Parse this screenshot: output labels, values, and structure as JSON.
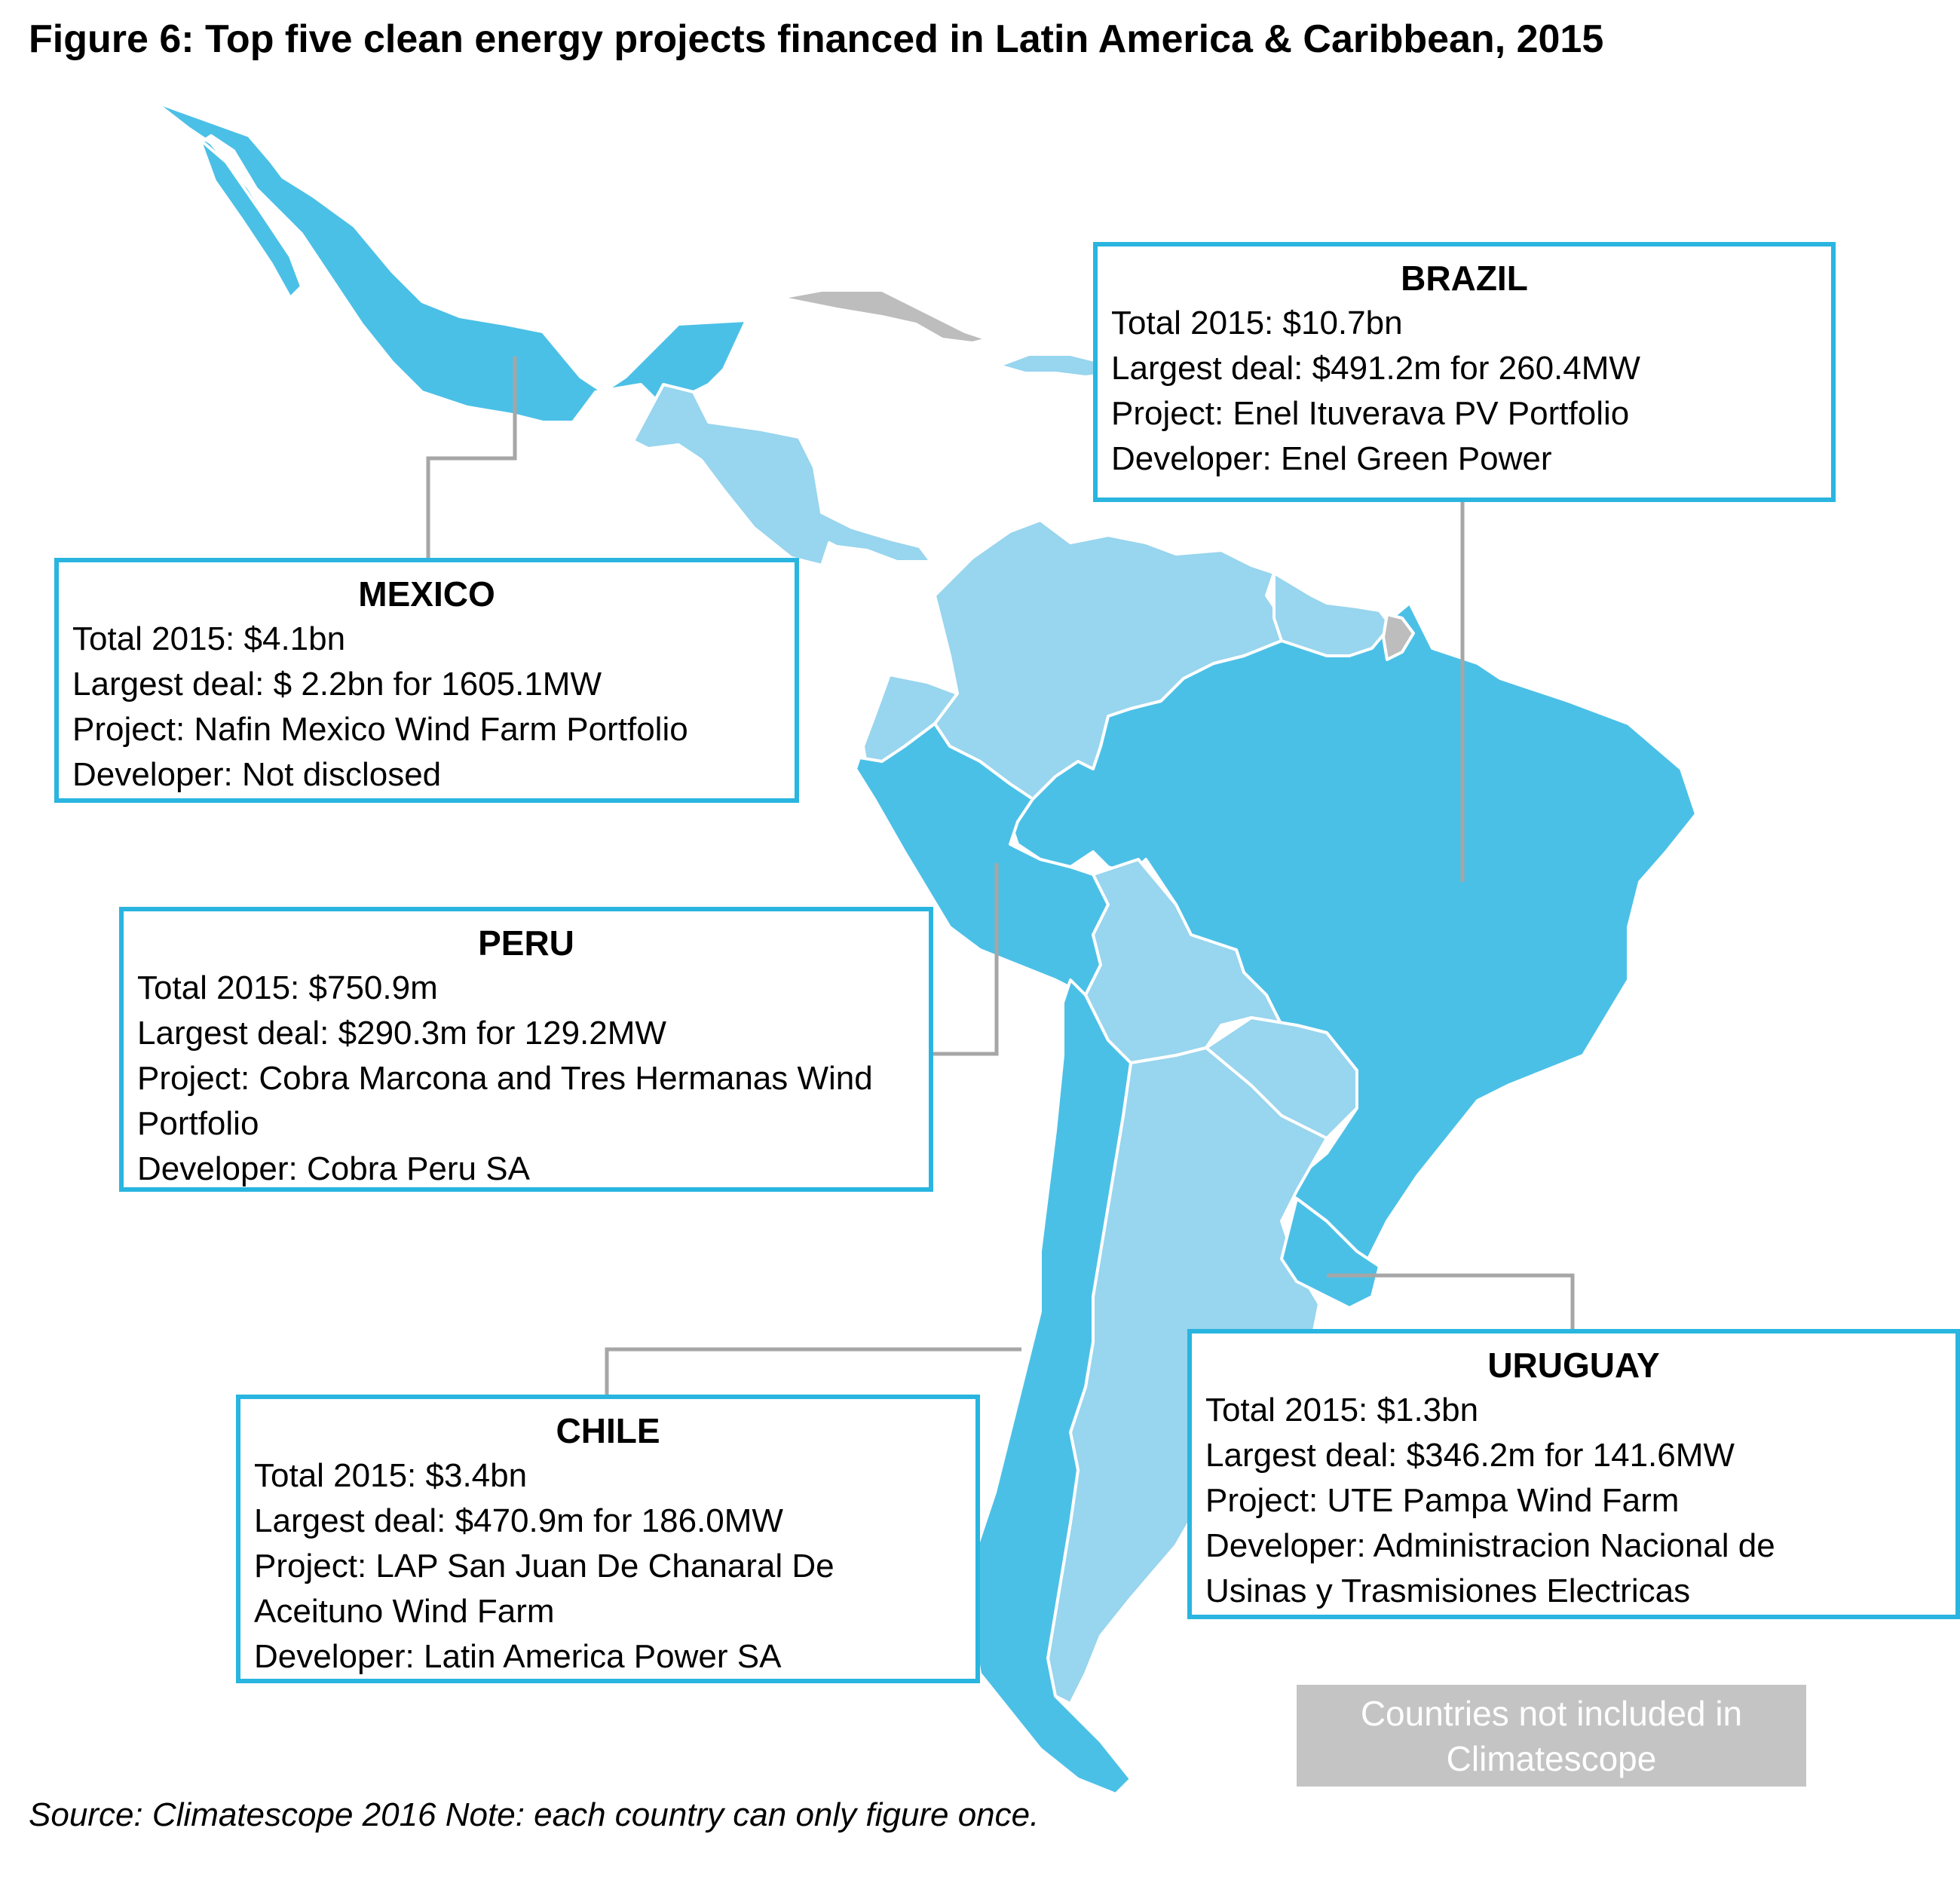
{
  "title": "Figure 6: Top five clean energy projects financed in Latin America & Caribbean, 2015",
  "source_note": "Source: Climatescope 2016 Note: each country can only figure once.",
  "legend": {
    "line1": "Countries not included in",
    "line2": "Climatescope"
  },
  "colors": {
    "featured": "#4BC0E6",
    "included": "#98D5EE",
    "excluded": "#BDBDBD",
    "border": "#29B5E0",
    "leader": "#A6A6A6"
  },
  "callouts": {
    "brazil": {
      "country": "BRAZIL",
      "total": "Total 2015: $10.7bn",
      "deal": "Largest deal: $491.2m for 260.4MW",
      "project": "Project: Enel Ituverava PV Portfolio",
      "developer": "Developer: Enel Green Power"
    },
    "mexico": {
      "country": "MEXICO",
      "total": "Total 2015: $4.1bn",
      "deal": "Largest deal: $ 2.2bn for 1605.1MW",
      "project": "Project: Nafin Mexico Wind Farm Portfolio",
      "developer": "Developer: Not disclosed"
    },
    "peru": {
      "country": "PERU",
      "total": "Total 2015: $750.9m",
      "deal": "Largest deal: $290.3m for 129.2MW",
      "project": "Project: Cobra Marcona and Tres Hermanas Wind Portfolio",
      "developer": "Developer: Cobra Peru SA"
    },
    "chile": {
      "country": "CHILE",
      "total": "Total 2015: $3.4bn",
      "deal": "Largest deal: $470.9m for 186.0MW",
      "project": "Project: LAP San Juan De Chanaral De Aceituno Wind Farm",
      "developer": "Developer: Latin America Power SA"
    },
    "uruguay": {
      "country": "URUGUAY",
      "total": "Total 2015: $1.3bn",
      "deal": "Largest deal: $346.2m for 141.6MW",
      "project": "Project: UTE Pampa Wind Farm",
      "developer": "Developer: Administracion Nacional de Usinas y Trasmisiones Electricas"
    }
  }
}
